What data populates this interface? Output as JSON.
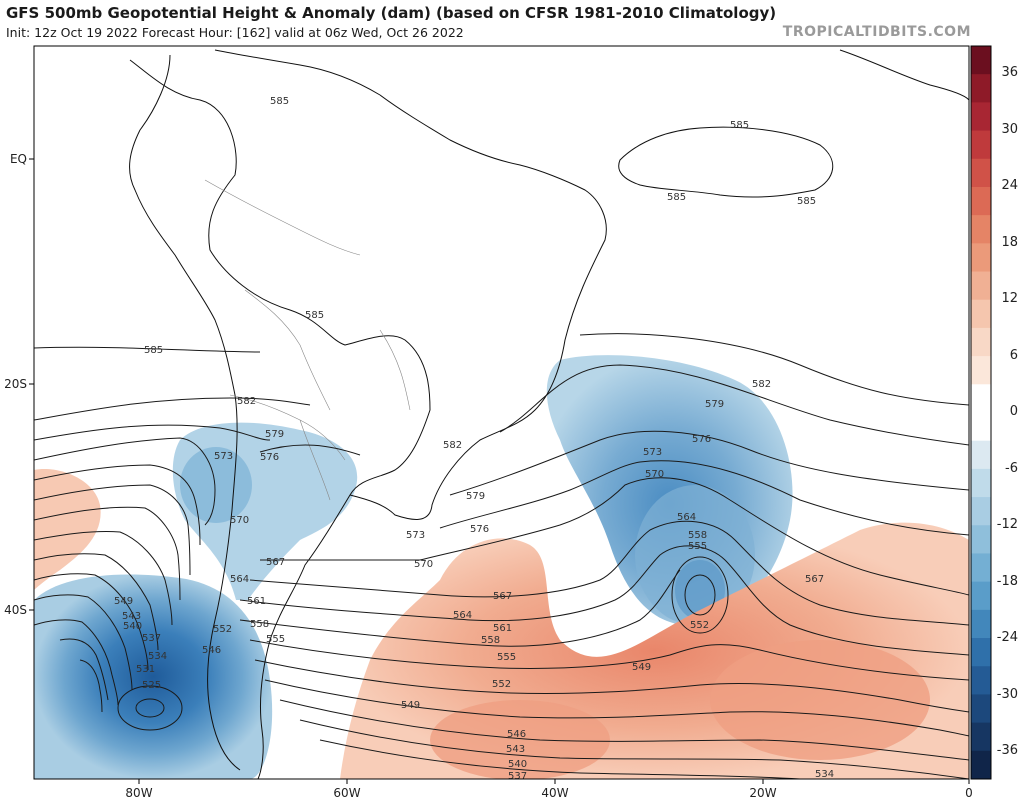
{
  "header": {
    "title": "GFS 500mb Geopotential Height & Anomaly (dam) (based on CFSR 1981-2010 Climatology)",
    "subtitle": "Init: 12z Oct 19 2022   Forecast Hour: [162]   valid at 06z Wed, Oct 26 2022",
    "watermark": "TROPICALTIDBITS.COM"
  },
  "map": {
    "x_ticks": [
      "80W",
      "60W",
      "40W",
      "20W",
      "0"
    ],
    "y_ticks": [
      "EQ",
      "20S",
      "40S"
    ],
    "colorbar": {
      "labels": [
        "36",
        "30",
        "24",
        "18",
        "12",
        "6",
        "0",
        "-6",
        "-12",
        "-18",
        "-24",
        "-30",
        "-36"
      ],
      "colors": [
        "#6b0f1f",
        "#8e1a28",
        "#a82633",
        "#bf3a3c",
        "#d05248",
        "#dc6a55",
        "#e58466",
        "#eb9a7a",
        "#f0b094",
        "#f5c6ae",
        "#f8d8c6",
        "#fbe7da",
        "#ffffff",
        "#ffffff",
        "#dce9f1",
        "#c0dbea",
        "#a9cde3",
        "#8fbfdb",
        "#74afd3",
        "#5a9dc9",
        "#4287bb",
        "#2f70aa",
        "#245b95",
        "#1c487c",
        "#163662",
        "#102549"
      ]
    },
    "contour_labels": [
      "585",
      "585",
      "585",
      "585",
      "585",
      "585",
      "582",
      "582",
      "582",
      "579",
      "579",
      "579",
      "576",
      "576",
      "576",
      "573",
      "573",
      "573",
      "570",
      "570",
      "570",
      "567",
      "567",
      "567",
      "564",
      "564",
      "564",
      "561",
      "561",
      "558",
      "558",
      "558",
      "555",
      "555",
      "555",
      "552",
      "552",
      "552",
      "549",
      "549",
      "549",
      "546",
      "546",
      "543",
      "543",
      "540",
      "540",
      "537",
      "537",
      "534",
      "534",
      "531",
      "525"
    ],
    "anomaly_color_positive": "#f3b39a",
    "anomaly_color_negative": "#8fbfdb"
  }
}
